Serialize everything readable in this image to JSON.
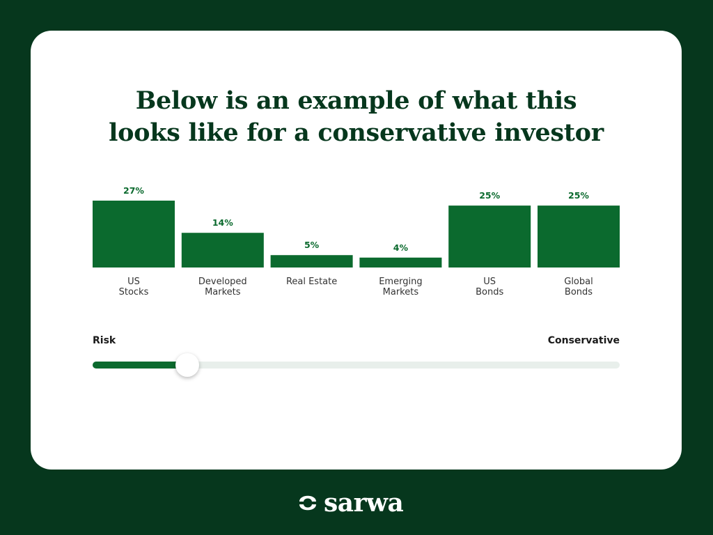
{
  "title": {
    "line1": "Below is an example of what this",
    "line2": "looks like for a conservative investor"
  },
  "chart_data": {
    "type": "bar",
    "categories": [
      [
        "US",
        "Stocks"
      ],
      [
        "Developed",
        "Markets"
      ],
      [
        "Real Estate"
      ],
      [
        "Emerging",
        "Markets"
      ],
      [
        "US",
        "Bonds"
      ],
      [
        "Global",
        "Bonds"
      ]
    ],
    "values": [
      27,
      14,
      5,
      4,
      25,
      25
    ],
    "data_labels": [
      "27%",
      "14%",
      "5%",
      "4%",
      "25%",
      "25%"
    ],
    "unit": "%",
    "ylim": [
      0,
      27
    ],
    "grid": false,
    "legend": "none",
    "bar_color": "#0b6a2e"
  },
  "slider": {
    "left_label": "Risk",
    "right_label": "Conservative",
    "value_fraction": 0.18,
    "fill_color": "#0b6a2e",
    "track_color": "#e8efeb"
  },
  "brand": {
    "name": "sarwa",
    "icon": "sarwa-logo-icon",
    "background_color": "#06371d"
  }
}
